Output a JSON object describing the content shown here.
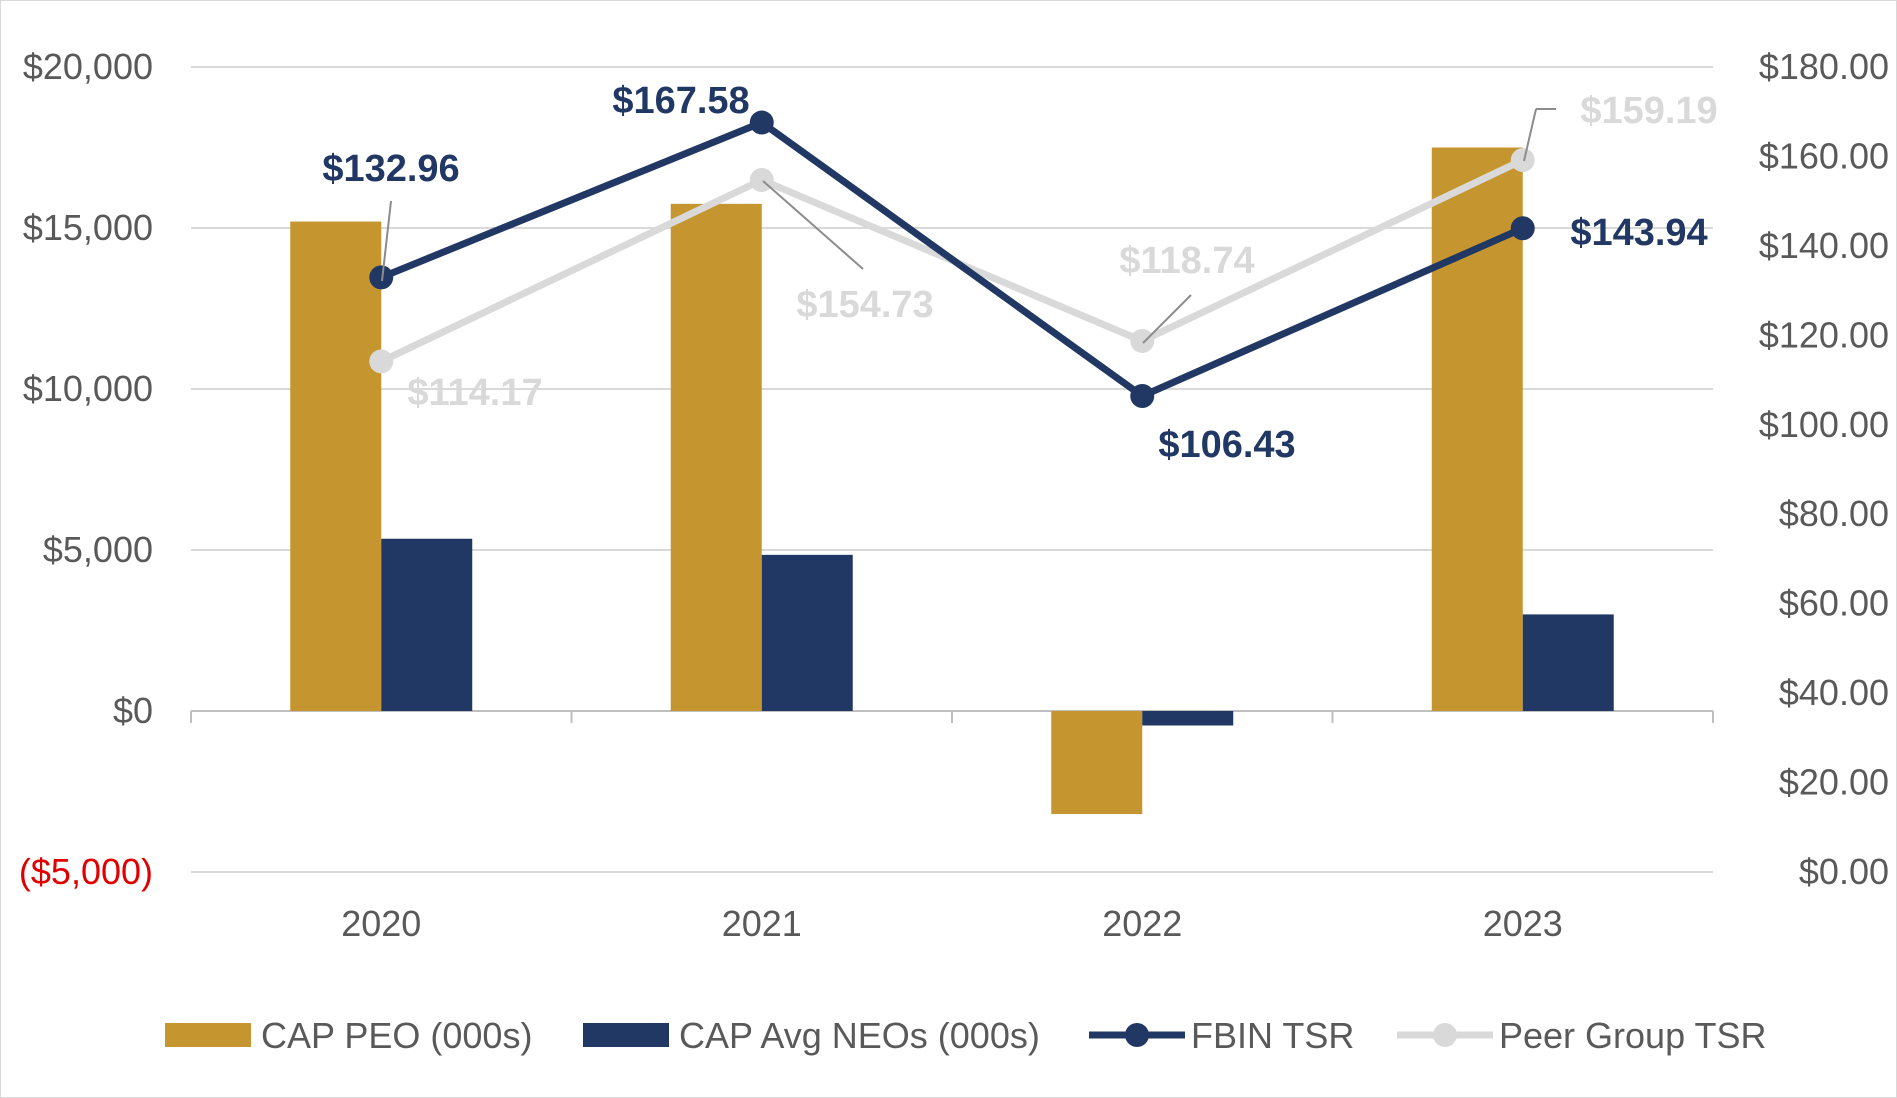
{
  "chart_data": {
    "type": "bar",
    "categories": [
      "2020",
      "2021",
      "2022",
      "2023"
    ],
    "left_axis": {
      "ylim": [
        -5000,
        20000
      ],
      "ticks": [
        {
          "value": 20000,
          "label": "$20,000"
        },
        {
          "value": 15000,
          "label": "$15,000"
        },
        {
          "value": 10000,
          "label": "$10,000"
        },
        {
          "value": 5000,
          "label": "$5,000"
        },
        {
          "value": 0,
          "label": "$0"
        },
        {
          "value": -5000,
          "label": "($5,000)"
        }
      ]
    },
    "right_axis": {
      "ylim": [
        0,
        180
      ],
      "ticks": [
        {
          "value": 180,
          "label": "$180.00"
        },
        {
          "value": 160,
          "label": "$160.00"
        },
        {
          "value": 140,
          "label": "$140.00"
        },
        {
          "value": 120,
          "label": "$120.00"
        },
        {
          "value": 100,
          "label": "$100.00"
        },
        {
          "value": 80,
          "label": "$80.00"
        },
        {
          "value": 60,
          "label": "$60.00"
        },
        {
          "value": 40,
          "label": "$40.00"
        },
        {
          "value": 20,
          "label": "$20.00"
        },
        {
          "value": 0,
          "label": "$0.00"
        }
      ]
    },
    "series": [
      {
        "name": "CAP PEO (000s)",
        "type": "bar",
        "axis": "left",
        "color": "#c5962f",
        "values": [
          15200,
          15750,
          -3200,
          17500
        ]
      },
      {
        "name": "CAP Avg NEOs (000s)",
        "type": "bar",
        "axis": "left",
        "color": "#223864",
        "values": [
          5350,
          4850,
          -450,
          3000
        ]
      },
      {
        "name": "FBIN TSR",
        "type": "line",
        "axis": "right",
        "color": "#223864",
        "values": [
          132.96,
          167.58,
          106.43,
          143.94
        ],
        "labels": [
          "$132.96",
          "$167.58",
          "$106.43",
          "$143.94"
        ]
      },
      {
        "name": "Peer Group TSR",
        "type": "line",
        "axis": "right",
        "color": "#d9d9d9",
        "values": [
          114.17,
          154.73,
          118.74,
          159.19
        ],
        "labels": [
          "$114.17",
          "$154.73",
          "$118.74",
          "$159.19"
        ]
      }
    ],
    "legend_position": "bottom",
    "grid": true
  }
}
